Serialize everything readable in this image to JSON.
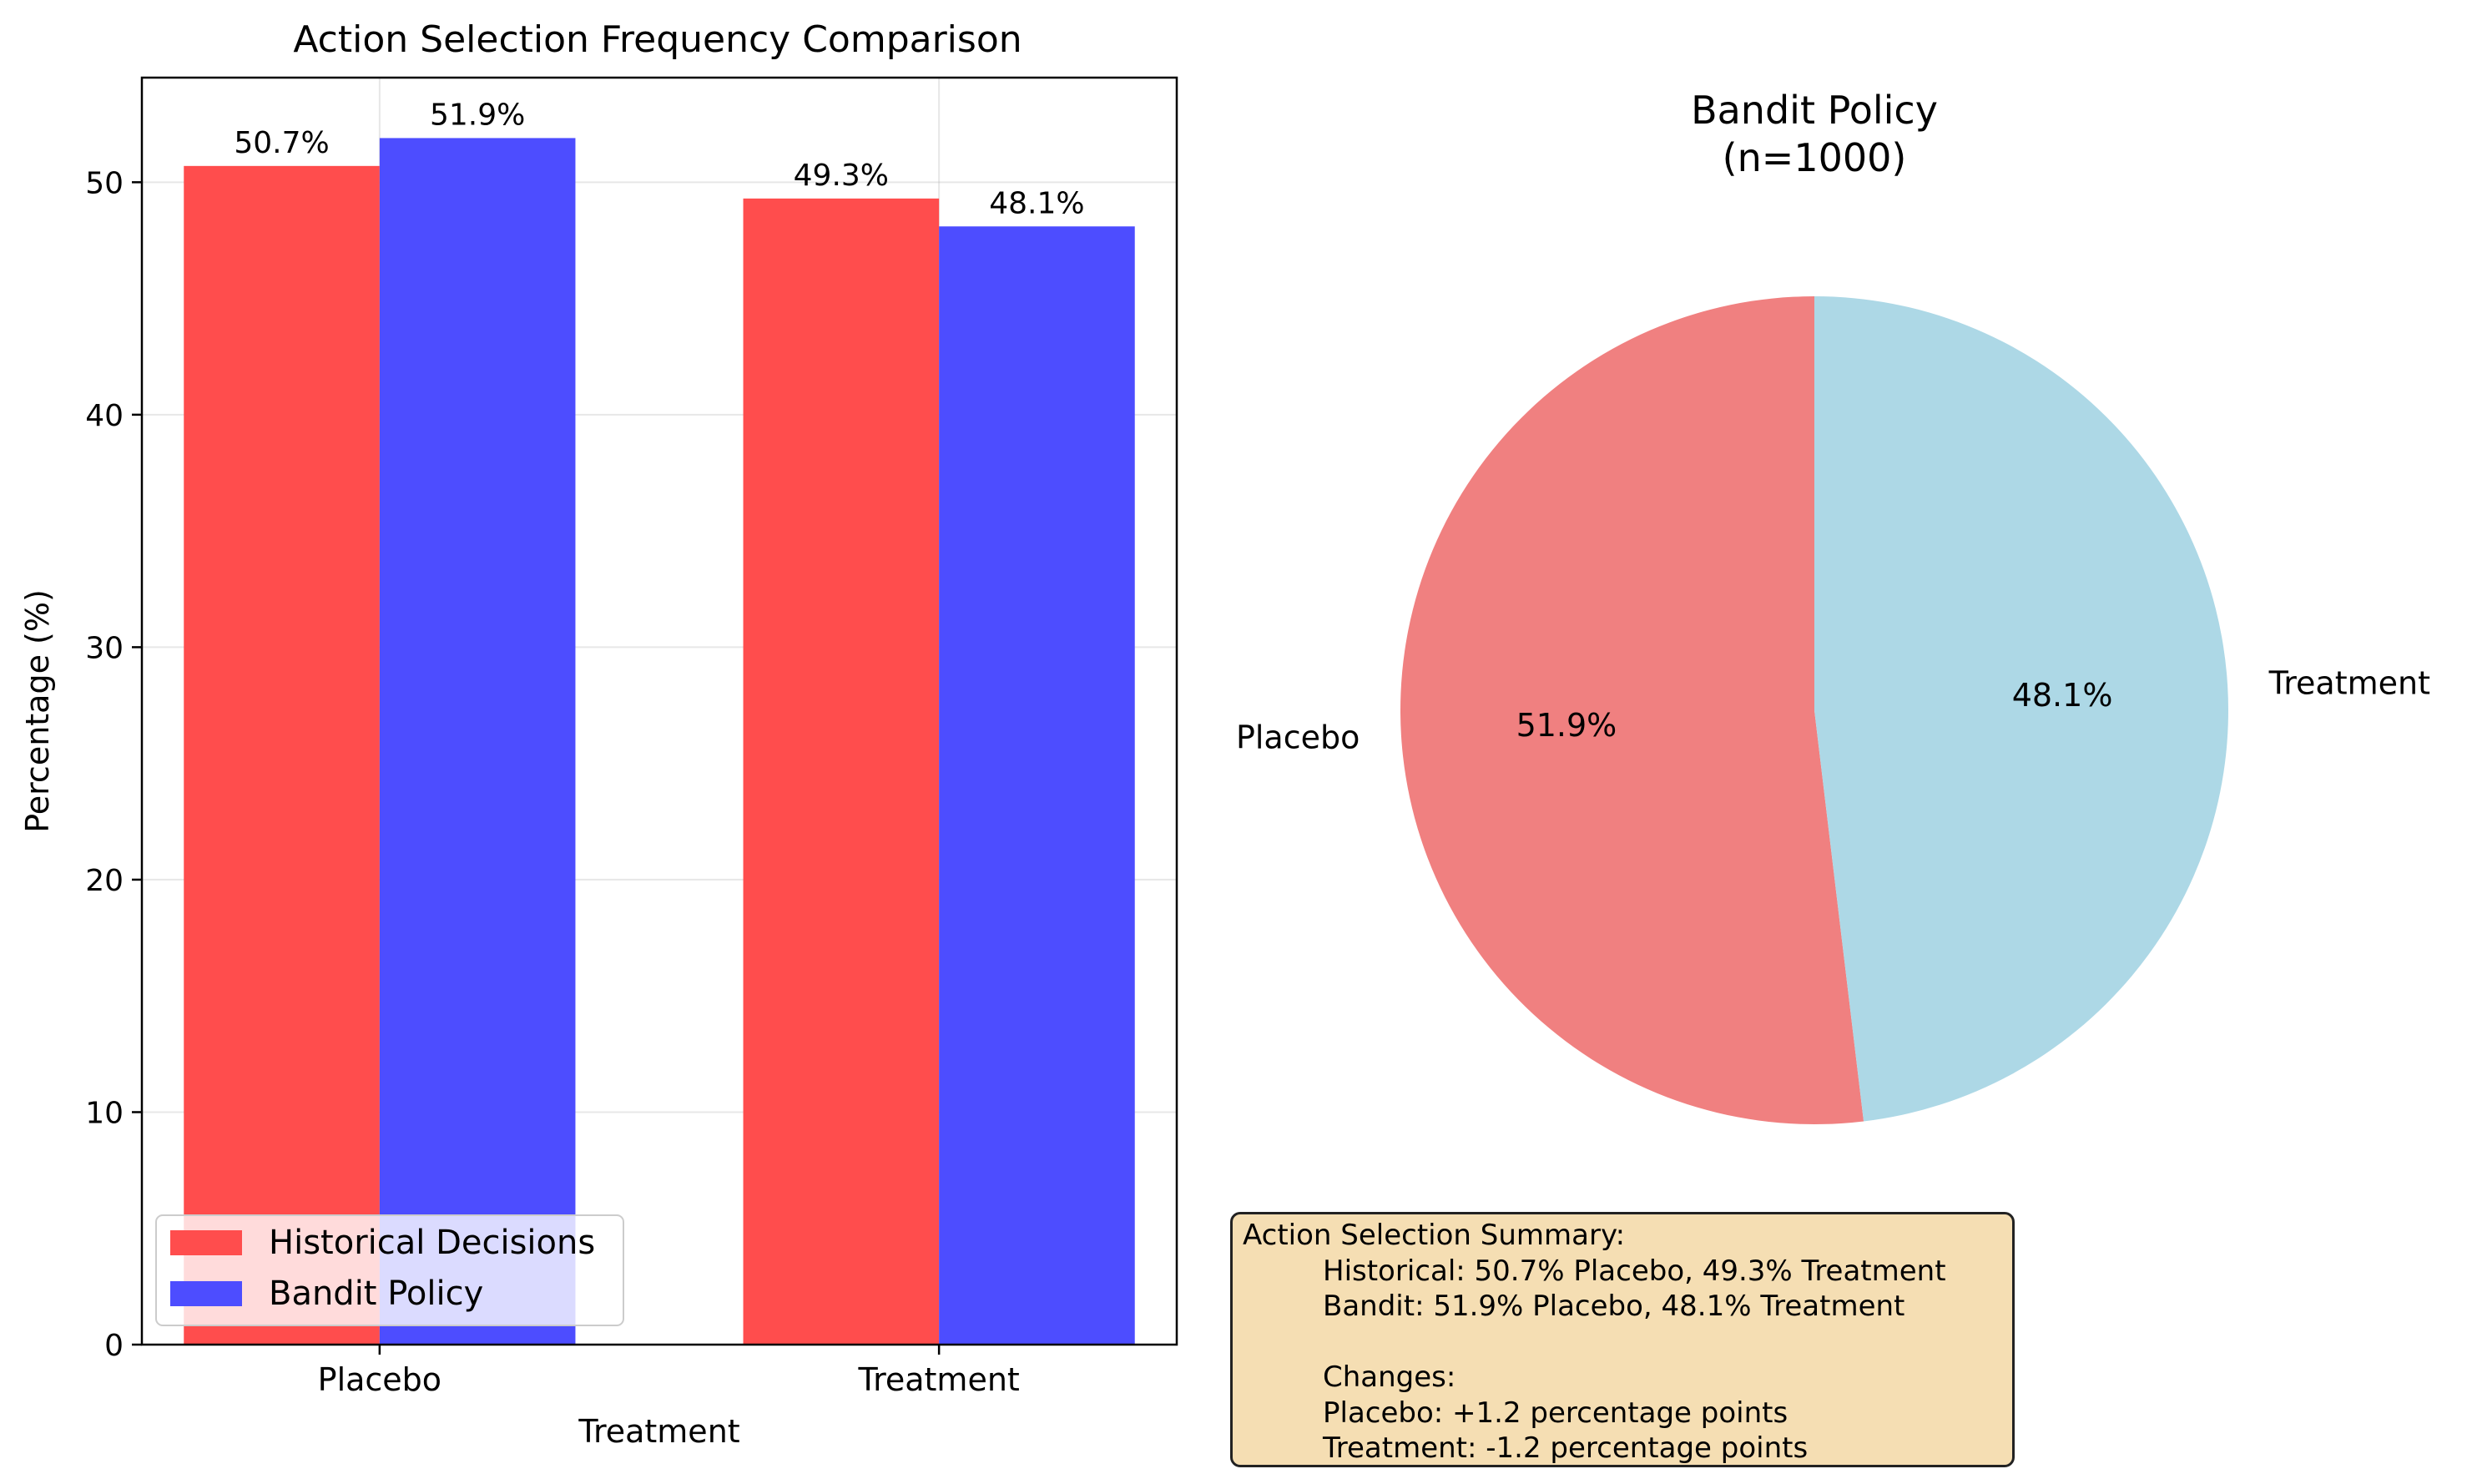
{
  "chart_data": [
    {
      "type": "bar",
      "title": "Action Selection Frequency Comparison",
      "xlabel": "Treatment",
      "ylabel": "Percentage (%)",
      "categories": [
        "Placebo",
        "Treatment"
      ],
      "series": [
        {
          "name": "Historical Decisions",
          "values": [
            50.7,
            49.3
          ],
          "labels": [
            "50.7%",
            "49.3%"
          ],
          "color": "#ff4d4d"
        },
        {
          "name": "Bandit Policy",
          "values": [
            51.9,
            48.1
          ],
          "labels": [
            "51.9%",
            "48.1%"
          ],
          "color": "#4d4dff"
        }
      ],
      "ylim": [
        0,
        54.5
      ],
      "yticks": [
        0,
        10,
        20,
        30,
        40,
        50
      ],
      "grid": true,
      "legend": "lower-left"
    },
    {
      "type": "pie",
      "title": "Bandit Policy",
      "subtitle": "(n=1000)",
      "slices": [
        {
          "label": "Placebo",
          "value": 51.9,
          "pct_label": "51.9%",
          "color": "#f08080"
        },
        {
          "label": "Treatment",
          "value": 48.1,
          "pct_label": "48.1%",
          "color": "#add8e6"
        }
      ],
      "start_angle_deg": 90,
      "direction": "counterclockwise"
    }
  ],
  "summary": {
    "heading": "Action Selection Summary:",
    "historical": "Historical: 50.7% Placebo, 49.3% Treatment",
    "bandit": "Bandit: 51.9% Placebo, 48.1% Treatment",
    "changes_heading": "Changes:",
    "placebo_change": "Placebo: +1.2 percentage points",
    "treatment_change": "Treatment: -1.2 percentage points",
    "background_color": "#f5deb3"
  }
}
